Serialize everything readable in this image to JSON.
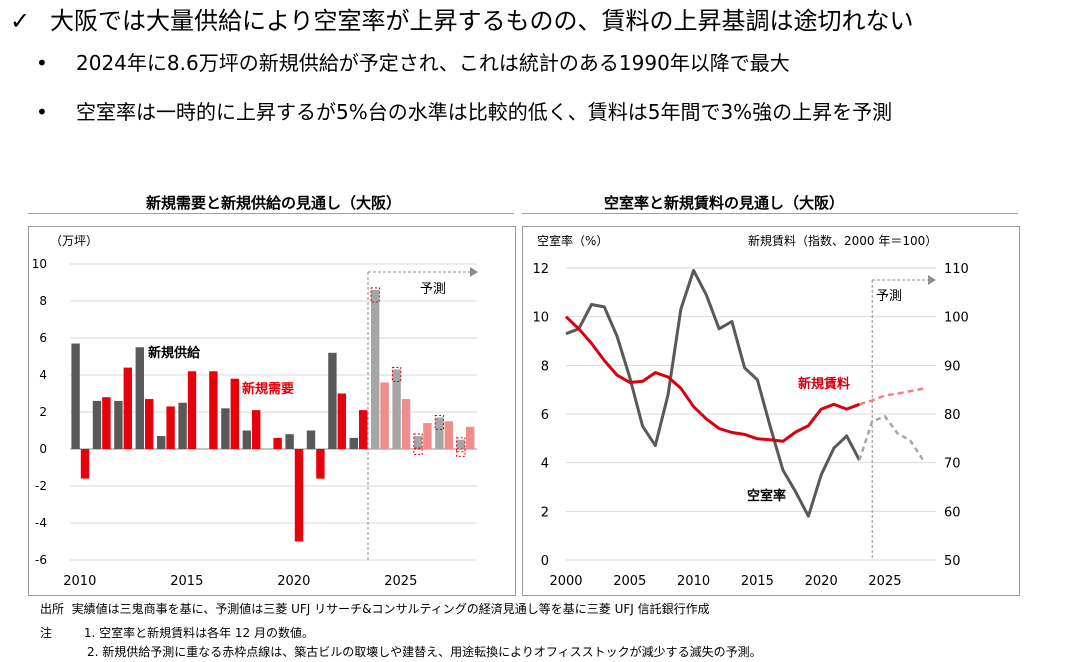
{
  "header": {
    "check_icon": "check-mark-icon",
    "headline": "大阪では大量供給により空室率が上昇するものの、賃料の上昇基調は途切れない",
    "bullets": [
      "2024年に8.6万坪の新規供給が予定され、これは統計のある1990年以降で最大",
      "空室率は一時的に上昇するが5%台の水準は比較的低く、賃料は5年間で3%強の上昇を予測"
    ]
  },
  "colors": {
    "supply": "#595959",
    "demand": "#e8000b",
    "supply_forecast": "#a6a6a6",
    "demand_forecast": "#f08c8c",
    "vacancy": "#595959",
    "rent": "#d7000f",
    "forecast_line": "#8c8c8c"
  },
  "chart_data": [
    {
      "type": "bar",
      "title": "新規需要と新規供給の見通し（大阪）",
      "ylabel": "（万坪）",
      "ylim": [
        -6,
        10
      ],
      "yticks": [
        "10",
        "8",
        "6",
        "4",
        "2",
        "0",
        "-2",
        "-4",
        "-6"
      ],
      "xtick_labels": [
        "2010",
        "2015",
        "2020",
        "2025"
      ],
      "x": [
        2010,
        2011,
        2012,
        2013,
        2014,
        2015,
        2016,
        2017,
        2018,
        2019,
        2020,
        2021,
        2022,
        2023,
        2024,
        2025,
        2026,
        2027,
        2028
      ],
      "forecast_start": 2024,
      "forecast_label": "予測",
      "series": [
        {
          "name": "新規供給",
          "values": [
            5.7,
            2.6,
            2.6,
            5.5,
            0.7,
            2.5,
            0,
            2.2,
            1.0,
            0,
            0.8,
            1.0,
            5.2,
            0.6,
            8.6,
            4.3,
            0.7,
            1.7,
            0.5
          ]
        },
        {
          "name": "新規需要",
          "values": [
            -1.6,
            2.8,
            4.4,
            2.7,
            2.3,
            4.2,
            4.2,
            3.8,
            2.1,
            0.6,
            -5.0,
            -1.6,
            3.0,
            2.1,
            3.6,
            2.7,
            1.4,
            1.5,
            1.2
          ]
        }
      ],
      "loss_offsets": [
        {
          "x": 2026,
          "value": -0.3
        },
        {
          "x": 2028,
          "value": -0.4
        }
      ]
    },
    {
      "type": "line",
      "title": "空室率と新規賃料の見通し（大阪）",
      "ylabel_left": "空室率（%）",
      "ylabel_right": "新規賃料（指数、2000 年＝100）",
      "ylim_left": [
        0,
        12
      ],
      "ylim_right": [
        50,
        110
      ],
      "yticks_left": [
        "12",
        "10",
        "8",
        "6",
        "4",
        "2",
        "0"
      ],
      "yticks_right": [
        "110",
        "100",
        "90",
        "80",
        "70",
        "60",
        "50"
      ],
      "xtick_labels": [
        "2000",
        "2005",
        "2010",
        "2015",
        "2020",
        "2025"
      ],
      "xlim": [
        2000,
        2029
      ],
      "forecast_start": 2024,
      "forecast_label": "予測",
      "series": [
        {
          "name": "空室率",
          "axis": "left",
          "x": [
            2000,
            2001,
            2002,
            2003,
            2004,
            2005,
            2006,
            2007,
            2008,
            2009,
            2010,
            2011,
            2012,
            2013,
            2014,
            2015,
            2016,
            2017,
            2018,
            2019,
            2020,
            2021,
            2022,
            2023
          ],
          "values": [
            9.3,
            9.5,
            10.5,
            10.4,
            9.2,
            7.5,
            5.5,
            4.7,
            6.8,
            10.3,
            11.9,
            10.9,
            9.5,
            9.8,
            7.9,
            7.4,
            5.5,
            3.7,
            2.8,
            1.8,
            3.5,
            4.6,
            5.1,
            4.1
          ]
        },
        {
          "name": "空室率（予測）",
          "axis": "left",
          "x": [
            2023,
            2024,
            2025,
            2026,
            2027,
            2028
          ],
          "values": [
            4.1,
            5.7,
            5.9,
            5.2,
            4.9,
            4.1
          ]
        },
        {
          "name": "新規賃料",
          "axis": "right",
          "x": [
            2000,
            2001,
            2002,
            2003,
            2004,
            2005,
            2006,
            2007,
            2008,
            2009,
            2010,
            2011,
            2012,
            2013,
            2014,
            2015,
            2016,
            2017,
            2018,
            2019,
            2020,
            2021,
            2022,
            2023
          ],
          "values": [
            100,
            97.5,
            94.5,
            91,
            88,
            86.5,
            86.7,
            88.5,
            87.6,
            85.3,
            81.5,
            79,
            77,
            76.2,
            75.8,
            74.9,
            74.7,
            74.4,
            76.3,
            77.6,
            81,
            82,
            81,
            82
          ]
        },
        {
          "name": "新規賃料（予測）",
          "axis": "right",
          "x": [
            2023,
            2024,
            2025,
            2026,
            2027,
            2028
          ],
          "values": [
            82,
            82.8,
            83.8,
            84.2,
            84.7,
            85.2
          ]
        }
      ],
      "series_labels": {
        "vacancy": "空室率",
        "rent": "新規賃料"
      }
    }
  ],
  "footnotes": {
    "source_label": "出所",
    "source_text": "実績値は三鬼商事を基に、予測値は三菱 UFJ リサーチ&コンサルティングの経済見通し等を基に三菱 UFJ 信託銀行作成",
    "note_label": "注",
    "notes": [
      "1.  空室率と新規賃料は各年 12 月の数値。",
      "2.  新規供給予測に重なる赤枠点線は、築古ビルの取壊しや建替え、用途転換によりオフィスストックが減少する滅失の予測。"
    ]
  }
}
